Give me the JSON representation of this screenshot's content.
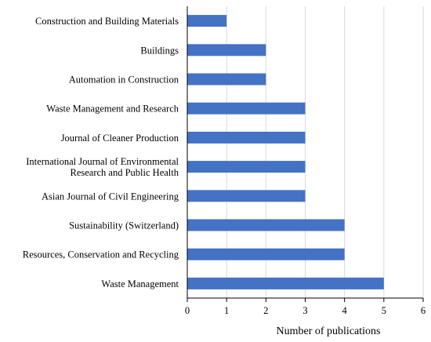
{
  "chart_data": {
    "type": "bar",
    "orientation": "horizontal",
    "categories": [
      [
        "Construction and Building Materials"
      ],
      [
        "Buildings"
      ],
      [
        "Automation in Construction"
      ],
      [
        "Waste Management and Research"
      ],
      [
        "Journal of Cleaner Production"
      ],
      [
        "International Journal of Environmental",
        "Research and Public Health"
      ],
      [
        "Asian Journal of Civil Engineering"
      ],
      [
        "Sustainability (Switzerland)"
      ],
      [
        "Resources, Conservation and Recycling"
      ],
      [
        "Waste Management"
      ]
    ],
    "values": [
      1,
      2,
      2,
      3,
      3,
      3,
      3,
      4,
      4,
      5
    ],
    "xlabel": "Number of publications",
    "ylabel": "",
    "xlim": [
      0,
      6
    ],
    "xticks": [
      "0",
      "1",
      "2",
      "3",
      "4",
      "5",
      "6"
    ],
    "grid": "vertical",
    "bar_color": "#4472c4"
  }
}
